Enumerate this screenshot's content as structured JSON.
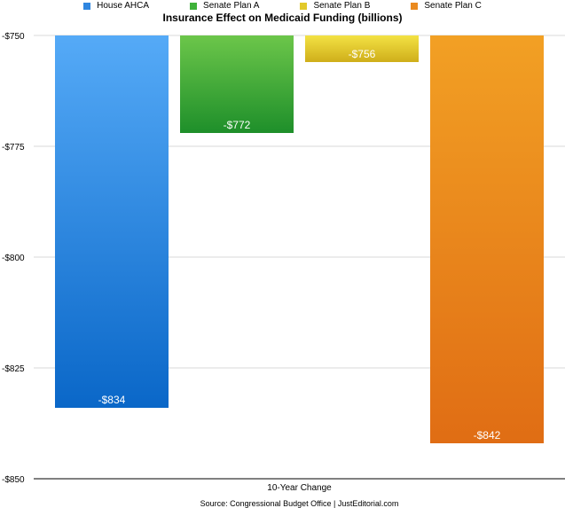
{
  "chart_data": {
    "type": "bar",
    "title": "Insurance Effect on Medicaid Funding (billions)",
    "categories": [
      "10-Year Change"
    ],
    "xlabel": "",
    "ylabel": "",
    "ylim": [
      -850,
      -750
    ],
    "yticks": [
      -750,
      -775,
      -800,
      -825,
      -850
    ],
    "ytick_labels": [
      "-$750",
      "-$775",
      "-$800",
      "-$825",
      "-$850"
    ],
    "grid": true,
    "legend_position": "top",
    "series": [
      {
        "name": "House AHCA",
        "values": [
          -834
        ],
        "label": "-$834",
        "color": "#2f86e0",
        "top_color": "#55aaf7",
        "bottom_color": "#0a67c8"
      },
      {
        "name": "Senate Plan A",
        "values": [
          -772
        ],
        "label": "-$772",
        "color": "#3fb23a",
        "top_color": "#6cc64a",
        "bottom_color": "#1e8f2a"
      },
      {
        "name": "Senate Plan B",
        "values": [
          -756
        ],
        "label": "-$756",
        "color": "#e2c92a",
        "top_color": "#f3e244",
        "bottom_color": "#cfae1a"
      },
      {
        "name": "Senate Plan C",
        "values": [
          -842
        ],
        "label": "-$842",
        "color": "#ea8a1f",
        "top_color": "#f2a024",
        "bottom_color": "#e06d14"
      }
    ],
    "source": "Source: Congressional Budget Office | JustEditorial.com"
  }
}
